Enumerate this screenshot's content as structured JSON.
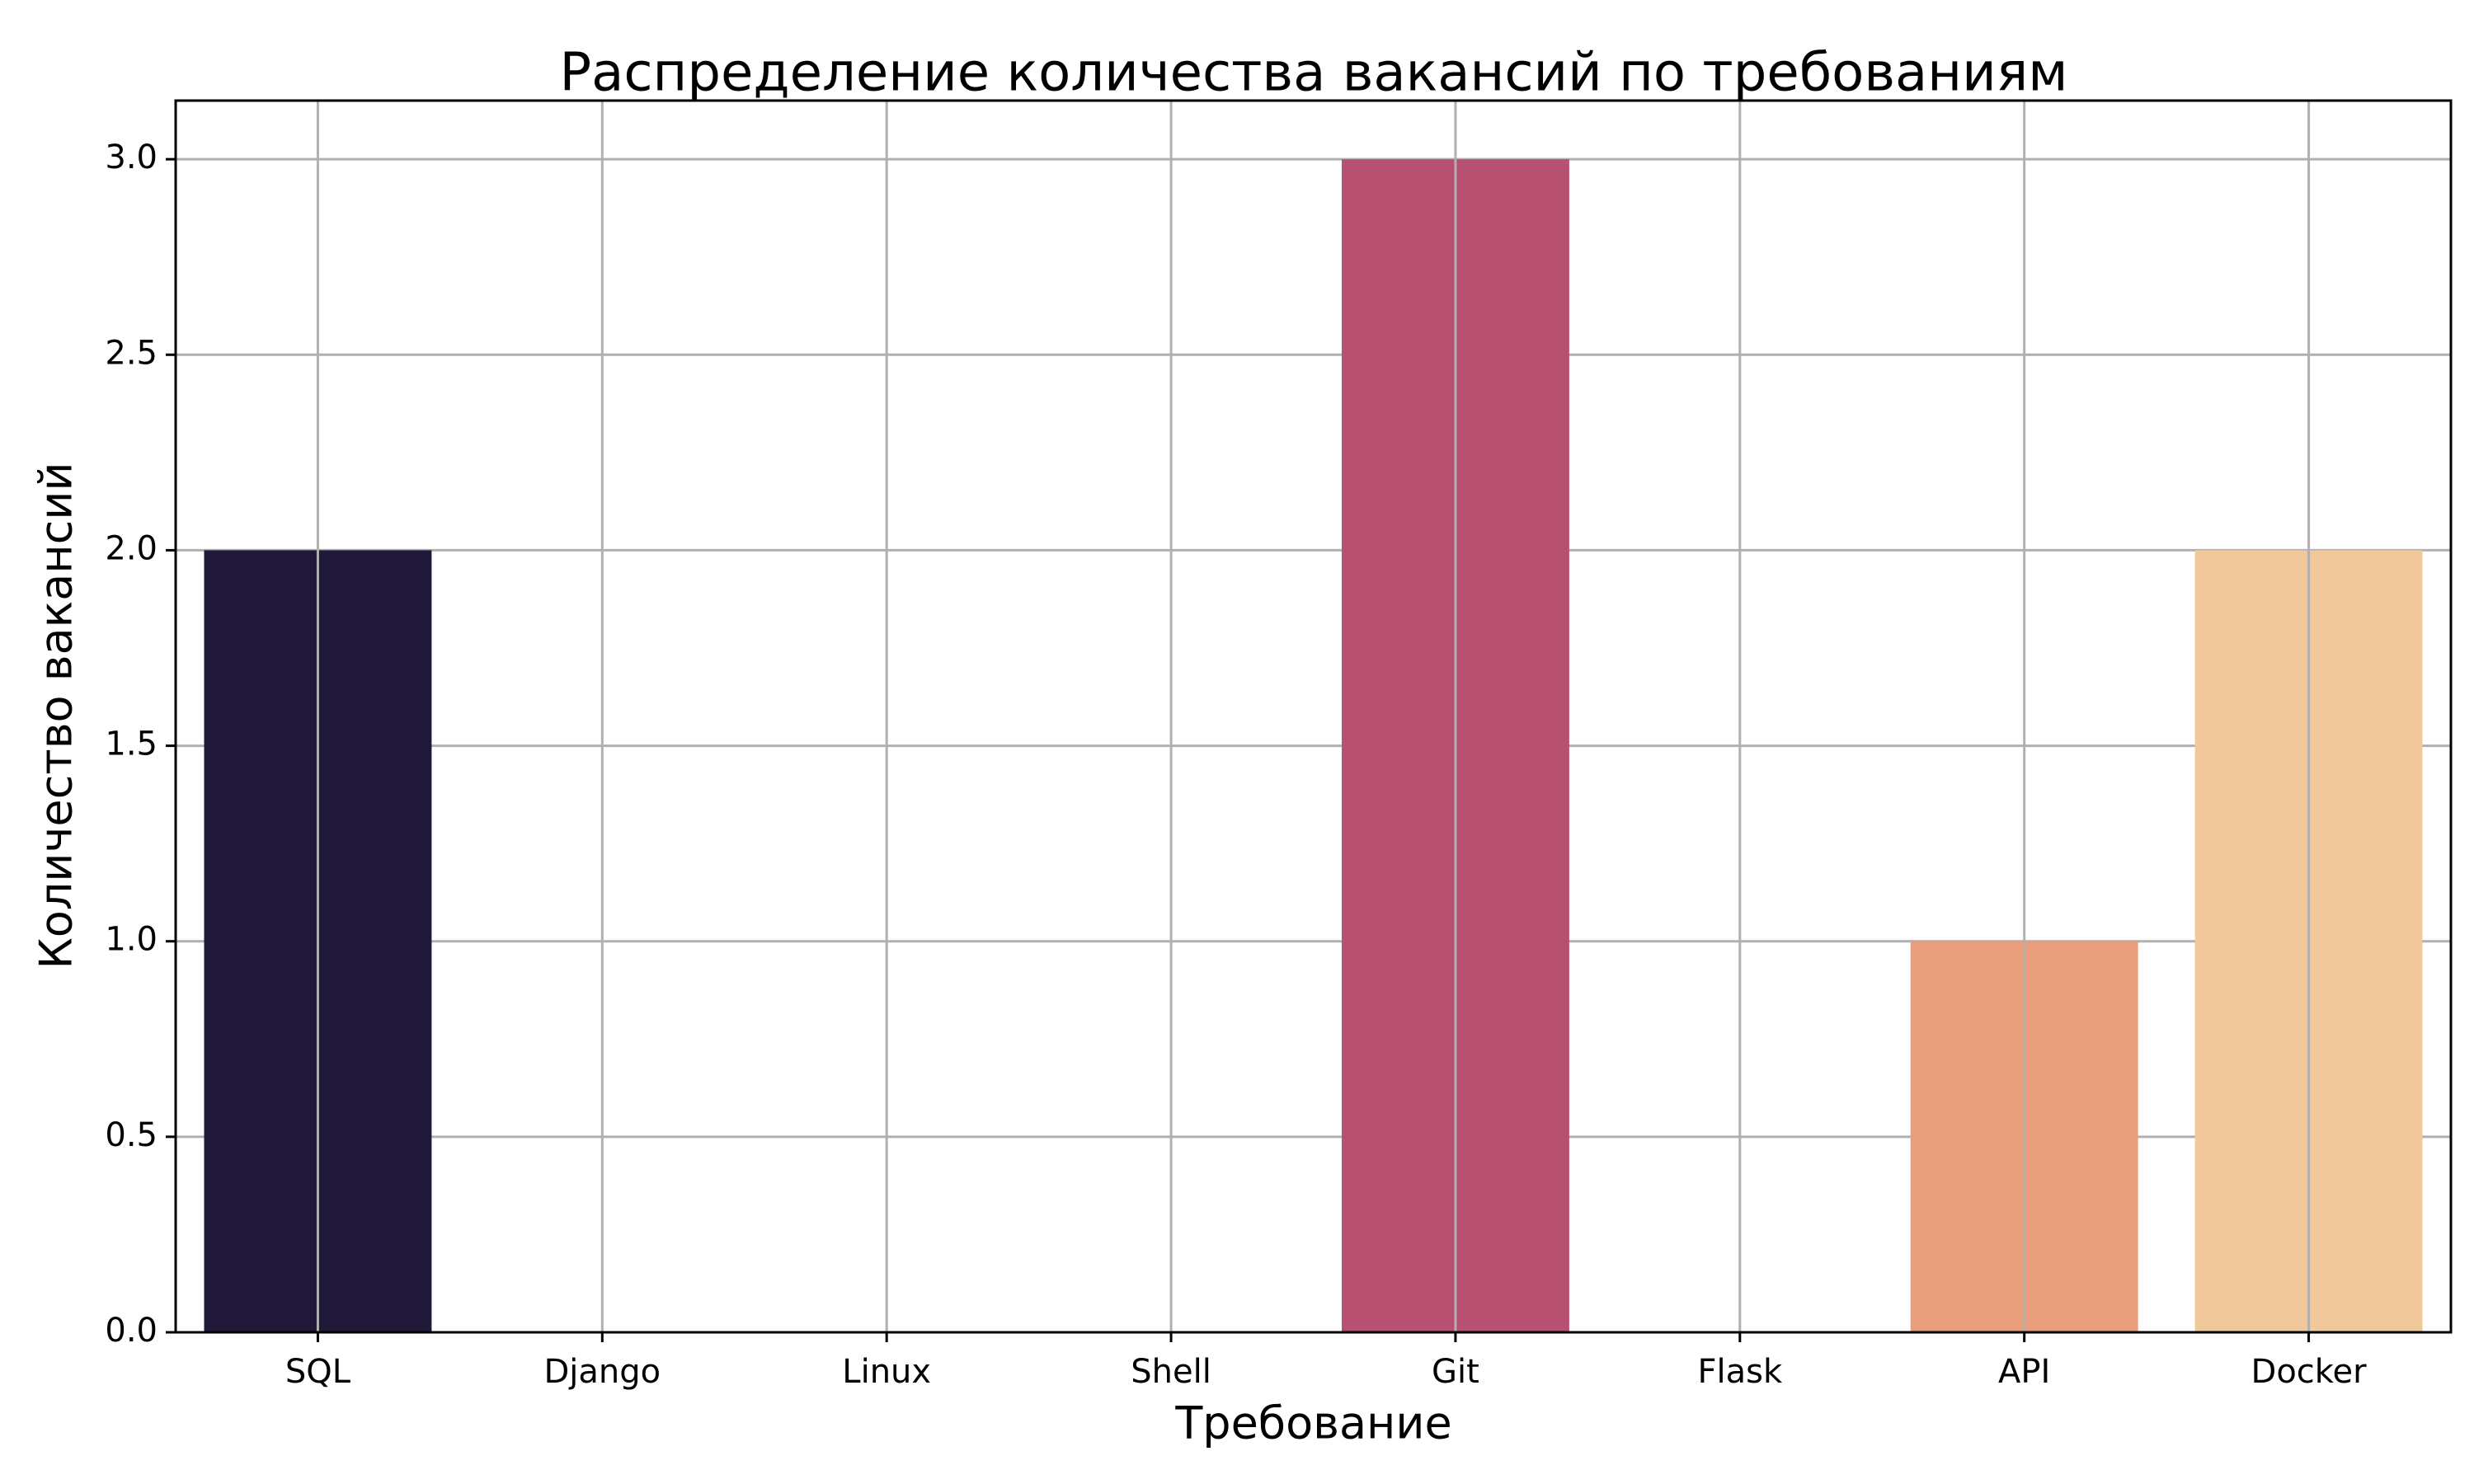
{
  "chart_data": {
    "type": "bar",
    "title": "Распределение количества вакансий по требованиям",
    "xlabel": "Требование",
    "ylabel": "Количество вакансий",
    "categories": [
      "SQL",
      "Django",
      "Linux",
      "Shell",
      "Git",
      "Flask",
      "API",
      "Docker"
    ],
    "values": [
      2,
      0,
      0,
      0,
      3,
      0,
      1,
      2
    ],
    "colors": [
      "#1f1838",
      "#1f1838",
      "#1f1838",
      "#1f1838",
      "#b85072",
      "#b85072",
      "#e89d7b",
      "#f0c89a"
    ],
    "ylim": [
      0,
      3.15
    ],
    "yticks": [
      0.0,
      0.5,
      1.0,
      1.5,
      2.0,
      2.5,
      3.0
    ],
    "ytick_labels": [
      "0.0",
      "0.5",
      "1.0",
      "1.5",
      "2.0",
      "2.5",
      "3.0"
    ],
    "grid": true
  }
}
